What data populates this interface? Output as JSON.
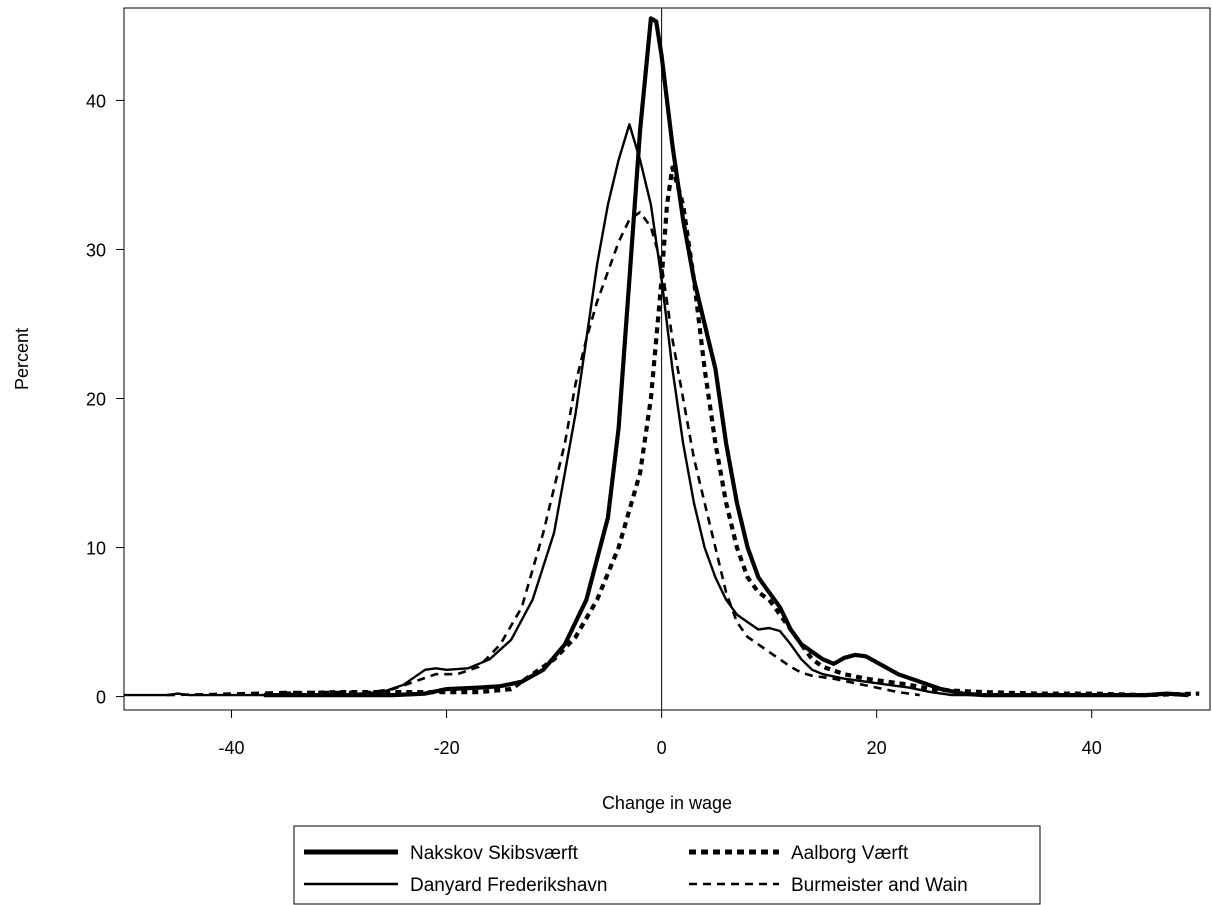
{
  "chart_data": {
    "type": "line",
    "title": "",
    "xlabel": "Change in wage",
    "ylabel": "Percent",
    "xlim": [
      -50,
      51
    ],
    "ylim": [
      -0.9,
      46.2
    ],
    "xticks": [
      -40,
      -20,
      0,
      20,
      40
    ],
    "yticks": [
      0,
      10,
      20,
      30,
      40
    ],
    "reference_line_x": 0,
    "grid": false,
    "legend_position": "bottom",
    "series": [
      {
        "name": "Nakskov Skibsværft",
        "color": "#000000",
        "line_style": "solid-thick",
        "points": [
          [
            -37,
            0.1
          ],
          [
            -30,
            0.1
          ],
          [
            -25,
            0.1
          ],
          [
            -22,
            0.2
          ],
          [
            -20,
            0.5
          ],
          [
            -17,
            0.6
          ],
          [
            -15,
            0.7
          ],
          [
            -13,
            1.0
          ],
          [
            -11,
            1.8
          ],
          [
            -9,
            3.5
          ],
          [
            -7,
            6.5
          ],
          [
            -5,
            12
          ],
          [
            -4,
            18
          ],
          [
            -3,
            28
          ],
          [
            -2,
            38
          ],
          [
            -1,
            45.5
          ],
          [
            -0.5,
            45.3
          ],
          [
            0,
            43
          ],
          [
            1,
            37
          ],
          [
            2,
            32
          ],
          [
            3,
            28
          ],
          [
            4,
            25
          ],
          [
            5,
            22
          ],
          [
            6,
            17
          ],
          [
            7,
            13
          ],
          [
            8,
            10
          ],
          [
            9,
            8
          ],
          [
            10,
            7
          ],
          [
            11,
            6
          ],
          [
            12,
            4.5
          ],
          [
            13,
            3.5
          ],
          [
            14,
            3
          ],
          [
            15,
            2.5
          ],
          [
            16,
            2.2
          ],
          [
            17,
            2.6
          ],
          [
            18,
            2.8
          ],
          [
            19,
            2.7
          ],
          [
            20,
            2.3
          ],
          [
            22,
            1.5
          ],
          [
            24,
            1.0
          ],
          [
            26,
            0.5
          ],
          [
            28,
            0.2
          ],
          [
            30,
            0.1
          ],
          [
            35,
            0.1
          ],
          [
            40,
            0.1
          ],
          [
            45,
            0.1
          ],
          [
            47,
            0.2
          ],
          [
            49,
            0.1
          ]
        ]
      },
      {
        "name": "Danyard Frederikshavn",
        "color": "#000000",
        "line_style": "solid",
        "points": [
          [
            -50,
            0.1
          ],
          [
            -46,
            0.1
          ],
          [
            -45,
            0.2
          ],
          [
            -44,
            0.1
          ],
          [
            -40,
            0.1
          ],
          [
            -35,
            0.1
          ],
          [
            -30,
            0.1
          ],
          [
            -26,
            0.3
          ],
          [
            -24,
            0.8
          ],
          [
            -22,
            1.8
          ],
          [
            -21,
            1.9
          ],
          [
            -20,
            1.8
          ],
          [
            -18,
            1.9
          ],
          [
            -16,
            2.5
          ],
          [
            -14,
            3.8
          ],
          [
            -12,
            6.5
          ],
          [
            -10,
            11
          ],
          [
            -8,
            19
          ],
          [
            -7,
            24
          ],
          [
            -6,
            29
          ],
          [
            -5,
            33
          ],
          [
            -4,
            36
          ],
          [
            -3,
            38.4
          ],
          [
            -2,
            36
          ],
          [
            -1,
            33
          ],
          [
            0,
            28
          ],
          [
            1,
            22
          ],
          [
            2,
            17
          ],
          [
            3,
            13
          ],
          [
            4,
            10
          ],
          [
            5,
            8
          ],
          [
            6,
            6.5
          ],
          [
            7,
            5.5
          ],
          [
            8,
            5
          ],
          [
            9,
            4.5
          ],
          [
            10,
            4.6
          ],
          [
            11,
            4.4
          ],
          [
            12,
            3.5
          ],
          [
            13,
            2.5
          ],
          [
            14,
            1.8
          ],
          [
            15,
            1.5
          ],
          [
            17,
            1.2
          ],
          [
            19,
            1.0
          ],
          [
            21,
            0.8
          ],
          [
            23,
            0.6
          ],
          [
            25,
            0.3
          ],
          [
            27,
            0.1
          ],
          [
            30,
            0.1
          ],
          [
            35,
            0.1
          ],
          [
            40,
            0.1
          ]
        ]
      },
      {
        "name": "Aalborg Værft",
        "color": "#000000",
        "line_style": "dotted-thick",
        "points": [
          [
            -35,
            0.2
          ],
          [
            -30,
            0.3
          ],
          [
            -26,
            0.3
          ],
          [
            -22,
            0.3
          ],
          [
            -19,
            0.3
          ],
          [
            -17,
            0.3
          ],
          [
            -14,
            0.5
          ],
          [
            -12,
            1.5
          ],
          [
            -10,
            2.5
          ],
          [
            -8,
            4
          ],
          [
            -6,
            6.5
          ],
          [
            -4,
            10
          ],
          [
            -2,
            15
          ],
          [
            -1,
            20
          ],
          [
            0,
            28
          ],
          [
            0.5,
            33
          ],
          [
            1,
            35.5
          ],
          [
            2,
            33
          ],
          [
            3,
            28
          ],
          [
            4,
            22
          ],
          [
            5,
            17
          ],
          [
            6,
            13
          ],
          [
            7,
            10
          ],
          [
            8,
            8
          ],
          [
            9,
            7
          ],
          [
            10,
            6.5
          ],
          [
            11,
            5.5
          ],
          [
            12,
            4.5
          ],
          [
            13,
            3.5
          ],
          [
            14,
            2.5
          ],
          [
            15,
            2
          ],
          [
            17,
            1.5
          ],
          [
            19,
            1.2
          ],
          [
            21,
            1.0
          ],
          [
            23,
            0.8
          ],
          [
            25,
            0.5
          ],
          [
            27,
            0.4
          ],
          [
            30,
            0.3
          ],
          [
            35,
            0.2
          ],
          [
            40,
            0.2
          ],
          [
            45,
            0.1
          ],
          [
            50,
            0.2
          ]
        ]
      },
      {
        "name": "Burmeister and Wain",
        "color": "#000000",
        "line_style": "dashed",
        "points": [
          [
            -46,
            0.1
          ],
          [
            -40,
            0.2
          ],
          [
            -35,
            0.3
          ],
          [
            -30,
            0.3
          ],
          [
            -27,
            0.3
          ],
          [
            -25,
            0.5
          ],
          [
            -23,
            1.0
          ],
          [
            -21,
            1.5
          ],
          [
            -19,
            1.5
          ],
          [
            -17,
            2
          ],
          [
            -15,
            3.5
          ],
          [
            -13,
            6
          ],
          [
            -11,
            11
          ],
          [
            -9,
            17
          ],
          [
            -8,
            21
          ],
          [
            -7,
            24
          ],
          [
            -6,
            26.5
          ],
          [
            -5,
            28.5
          ],
          [
            -4,
            30.5
          ],
          [
            -3,
            32
          ],
          [
            -2,
            32.5
          ],
          [
            -1,
            31.5
          ],
          [
            0,
            29
          ],
          [
            1,
            24
          ],
          [
            2,
            20
          ],
          [
            3,
            16
          ],
          [
            4,
            13
          ],
          [
            5,
            10
          ],
          [
            6,
            7
          ],
          [
            7,
            5
          ],
          [
            8,
            4
          ],
          [
            9,
            3.5
          ],
          [
            10,
            3
          ],
          [
            11,
            2.5
          ],
          [
            12,
            2
          ],
          [
            13,
            1.6
          ],
          [
            14,
            1.4
          ],
          [
            16,
            1.2
          ],
          [
            18,
            0.9
          ],
          [
            20,
            0.6
          ],
          [
            22,
            0.3
          ],
          [
            24,
            0.1
          ]
        ]
      }
    ]
  }
}
